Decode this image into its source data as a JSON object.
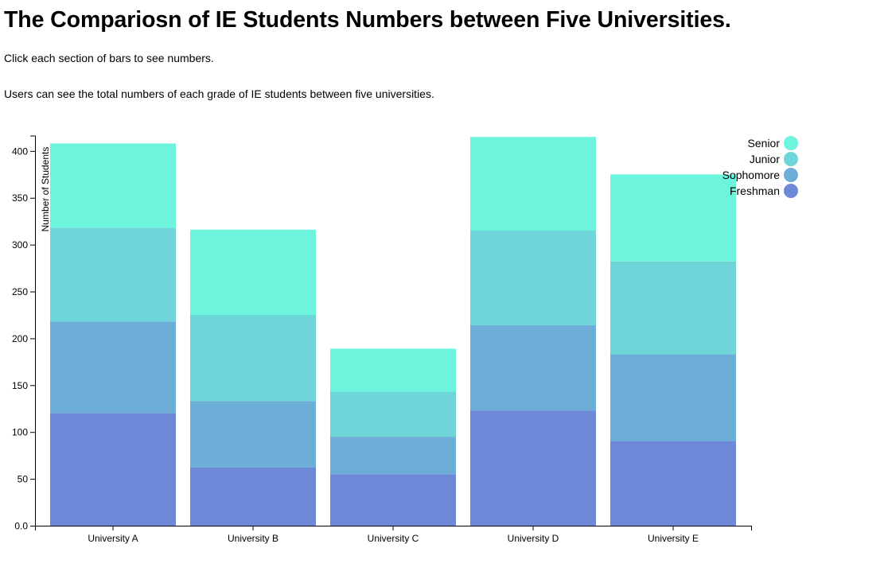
{
  "page": {
    "title": "The Compariosn of IE Students Numbers between Five Universities.",
    "instruction": "Click each section of bars to see numbers.",
    "description": "Users can see the total numbers of each grade of IE students between five universities."
  },
  "chart_data": {
    "type": "bar",
    "stacked": true,
    "title": "",
    "xlabel": "",
    "ylabel": "Number of Students",
    "ylim": [
      0,
      416
    ],
    "yticks": [
      0,
      50,
      100,
      150,
      200,
      250,
      300,
      350,
      400
    ],
    "ytick_labels": [
      "0.0",
      "50",
      "100",
      "150",
      "200",
      "250",
      "300",
      "350",
      "400"
    ],
    "categories": [
      "University A",
      "University B",
      "University C",
      "University D",
      "University E"
    ],
    "series": [
      {
        "name": "Freshman",
        "color": "#6e88d8",
        "values": [
          120,
          62,
          55,
          123,
          90
        ]
      },
      {
        "name": "Sophomore",
        "color": "#6daed8",
        "values": [
          98,
          71,
          40,
          91,
          93
        ]
      },
      {
        "name": "Junior",
        "color": "#6ed5d9",
        "values": [
          100,
          92,
          48,
          101,
          99
        ]
      },
      {
        "name": "Senior",
        "color": "#6df4dc",
        "values": [
          90,
          91,
          46,
          100,
          93
        ]
      }
    ],
    "legend_order": [
      "Senior",
      "Junior",
      "Sophomore",
      "Freshman"
    ],
    "legend_position": "top-right"
  }
}
